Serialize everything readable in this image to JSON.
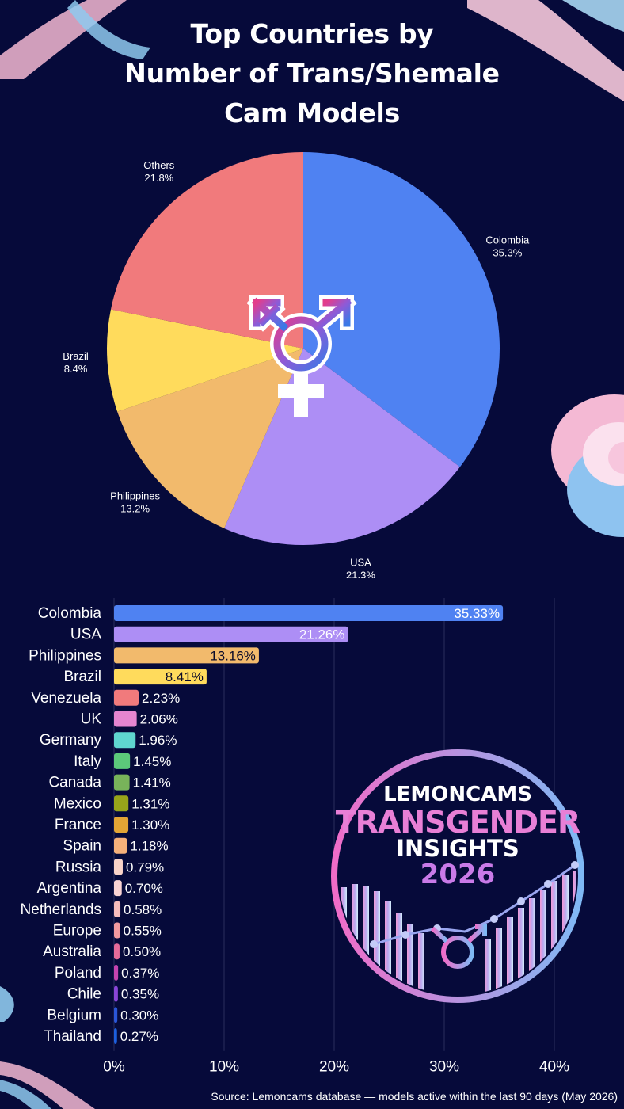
{
  "title_lines": [
    "Top Countries by",
    "Number of Trans/Shemale",
    "Cam Models"
  ],
  "source": "Source: Lemoncams database — models active within the last 90 days (May 2026)",
  "badge": {
    "line1": "LEMONCAMS",
    "line2": "TRANSGENDER",
    "line3": "INSIGHTS",
    "line4": "2026"
  },
  "colors": {
    "background": "#060a3a"
  },
  "chart_data": [
    {
      "type": "pie",
      "slices": [
        {
          "label": "Colombia",
          "value": 35.3,
          "text": "35.3%",
          "color": "#4f82f2"
        },
        {
          "label": "USA",
          "value": 21.3,
          "text": "21.3%",
          "color": "#ad8ef5"
        },
        {
          "label": "Philippines",
          "value": 13.2,
          "text": "13.2%",
          "color": "#f2ba6c"
        },
        {
          "label": "Brazil",
          "value": 8.4,
          "text": "8.4%",
          "color": "#ffdb5c"
        },
        {
          "label": "Others",
          "value": 21.8,
          "text": "21.8%",
          "color": "#f17a7c"
        }
      ]
    },
    {
      "type": "bar",
      "orientation": "horizontal",
      "categories": [
        "Colombia",
        "USA",
        "Philippines",
        "Brazil",
        "Venezuela",
        "UK",
        "Germany",
        "Italy",
        "Canada",
        "Mexico",
        "France",
        "Spain",
        "Russia",
        "Argentina",
        "Netherlands",
        "Europe",
        "Australia",
        "Poland",
        "Chile",
        "Belgium",
        "Thailand"
      ],
      "values": [
        35.33,
        21.26,
        13.16,
        8.41,
        2.23,
        2.06,
        1.96,
        1.45,
        1.41,
        1.31,
        1.3,
        1.18,
        0.79,
        0.7,
        0.58,
        0.55,
        0.5,
        0.37,
        0.35,
        0.3,
        0.27
      ],
      "labels": [
        "35.33%",
        "21.26%",
        "13.16%",
        "8.41%",
        "2.23%",
        "2.06%",
        "1.96%",
        "1.45%",
        "1.41%",
        "1.31%",
        "1.30%",
        "1.18%",
        "0.79%",
        "0.70%",
        "0.58%",
        "0.55%",
        "0.50%",
        "0.37%",
        "0.35%",
        "0.30%",
        "0.27%"
      ],
      "colors": [
        "#4f82f2",
        "#ad8ef5",
        "#f2ba6c",
        "#ffdb5c",
        "#f17a7c",
        "#e585d0",
        "#5fd6cf",
        "#5cc97a",
        "#78b35a",
        "#97a51a",
        "#e3a535",
        "#f5b07a",
        "#f9d3c8",
        "#f9d3d3",
        "#f6bcbc",
        "#f29aa0",
        "#e56b9a",
        "#c443b0",
        "#8a45d8",
        "#2a56d8",
        "#1c5fe0"
      ],
      "xlim": [
        0,
        45
      ],
      "xticks": [
        "0%",
        "10%",
        "20%",
        "30%",
        "40%"
      ],
      "xtick_values": [
        0,
        10,
        20,
        30,
        40
      ],
      "grid": true
    }
  ]
}
